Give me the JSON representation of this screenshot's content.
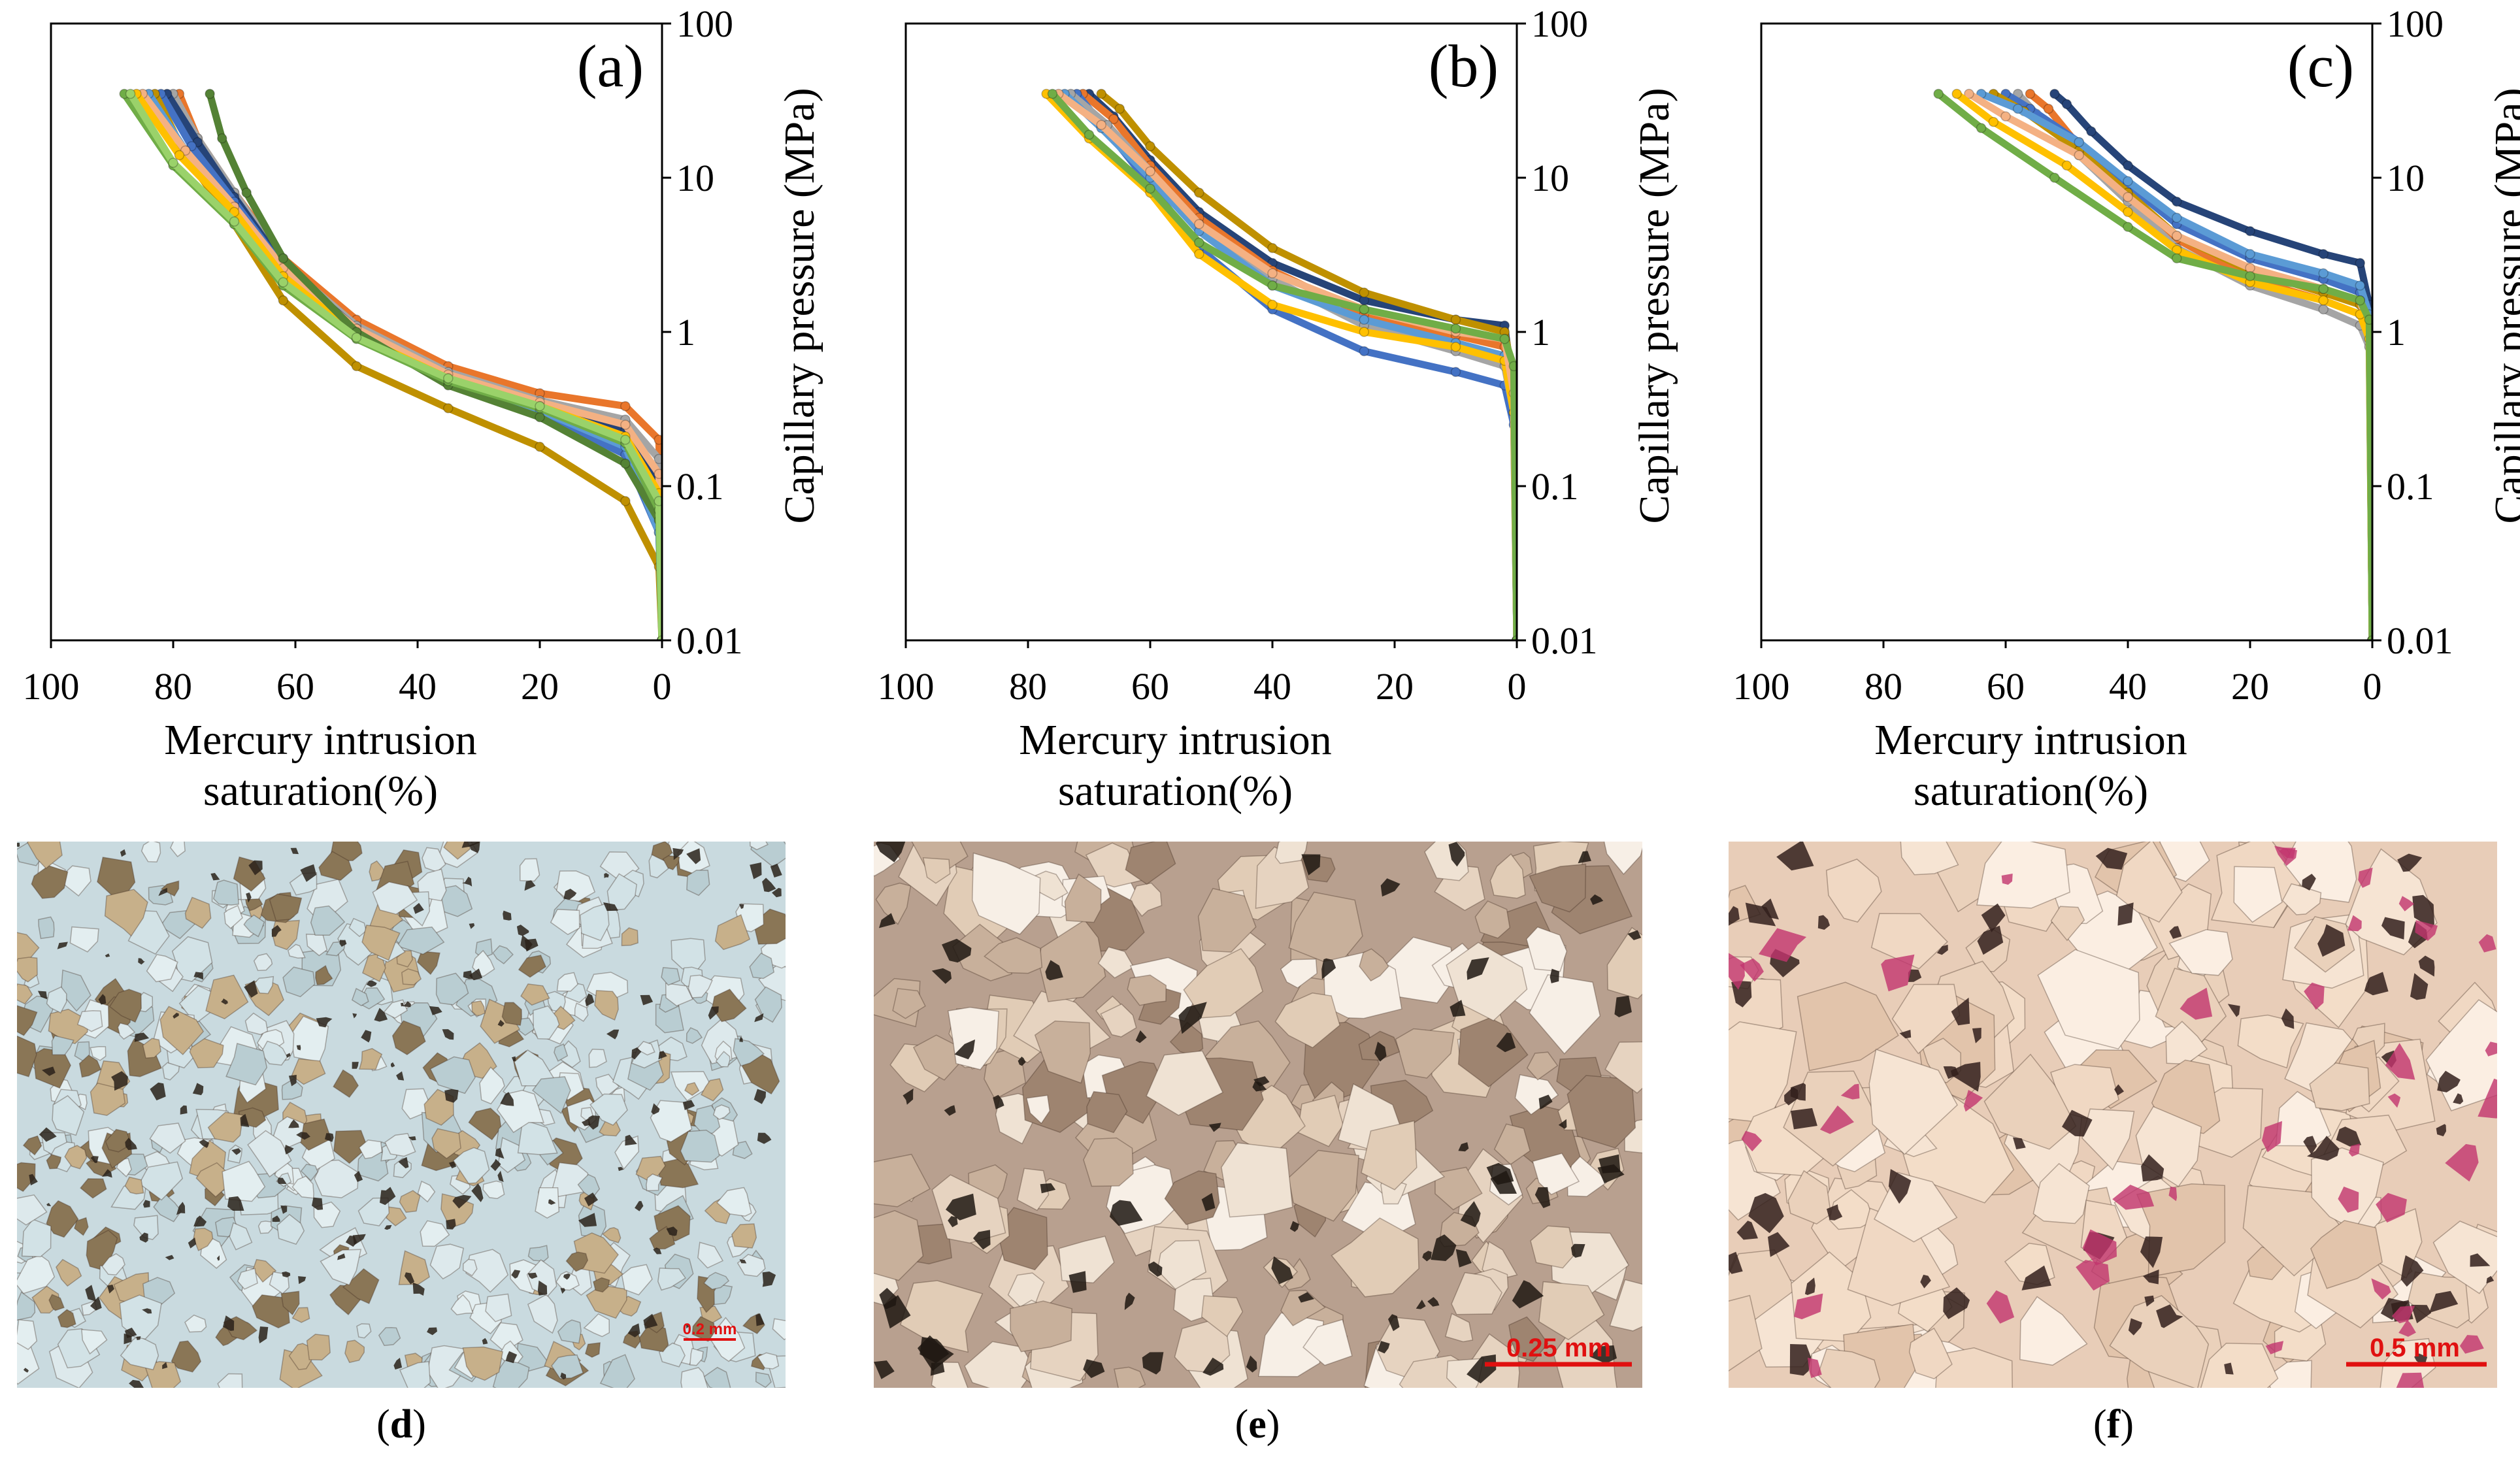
{
  "chart_data": [
    {
      "type": "line",
      "panel_label": "(a)",
      "xlabel_line1": "Mercury intrusion",
      "xlabel_line2": "saturation(%)",
      "ylabel": "Capillary pressure (MPa)",
      "x_ticks": [
        "100",
        "80",
        "60",
        "40",
        "20",
        "0"
      ],
      "y_ticks": [
        "0.01",
        "0.1",
        "1",
        "10",
        "100"
      ],
      "xlim": [
        100,
        0
      ],
      "ylim": [
        0.01,
        100
      ],
      "y_scale": "log",
      "series": [
        {
          "color": "#e9762b",
          "x": [
            0,
            0.5,
            6,
            20,
            35,
            50,
            62,
            70,
            76,
            79
          ],
          "y": [
            0.01,
            0.2,
            0.33,
            0.4,
            0.6,
            1.2,
            3,
            8,
            18,
            35
          ]
        },
        {
          "color": "#a5a5a5",
          "x": [
            0,
            0.5,
            6,
            20,
            35,
            50,
            62,
            70,
            76,
            80
          ],
          "y": [
            0.01,
            0.15,
            0.27,
            0.36,
            0.55,
            1.1,
            2.8,
            8,
            18,
            35
          ]
        },
        {
          "color": "#264478",
          "x": [
            0,
            0.5,
            6,
            20,
            35,
            50,
            62,
            70,
            76,
            81
          ],
          "y": [
            0.01,
            0.1,
            0.23,
            0.34,
            0.52,
            1.05,
            2.7,
            7.5,
            17,
            35
          ]
        },
        {
          "color": "#4472c4",
          "x": [
            0,
            0.5,
            6,
            20,
            35,
            50,
            62,
            70,
            77,
            82
          ],
          "y": [
            0.01,
            0.05,
            0.16,
            0.3,
            0.48,
            1.0,
            2.6,
            7,
            16,
            35
          ]
        },
        {
          "color": "#bf9000",
          "x": [
            0,
            0.5,
            6,
            20,
            35,
            50,
            62,
            70,
            78,
            83
          ],
          "y": [
            0.01,
            0.03,
            0.08,
            0.18,
            0.32,
            0.6,
            1.6,
            5,
            14,
            35
          ]
        },
        {
          "color": "#5b9bd5",
          "x": [
            0,
            0.5,
            6,
            20,
            35,
            50,
            62,
            70,
            78,
            84
          ],
          "y": [
            0.01,
            0.05,
            0.18,
            0.31,
            0.5,
            1.0,
            2.5,
            6.5,
            15,
            35
          ]
        },
        {
          "color": "#f4b183",
          "x": [
            0,
            0.5,
            6,
            20,
            35,
            50,
            62,
            70,
            78,
            85
          ],
          "y": [
            0.01,
            0.12,
            0.25,
            0.35,
            0.53,
            1.05,
            2.6,
            6.5,
            15,
            35
          ]
        },
        {
          "color": "#ffc000",
          "x": [
            0,
            0.5,
            6,
            20,
            35,
            50,
            62,
            70,
            79,
            86
          ],
          "y": [
            0.01,
            0.09,
            0.21,
            0.33,
            0.5,
            0.95,
            2.3,
            6,
            14,
            35
          ]
        },
        {
          "color": "#548235",
          "x": [
            0,
            0.5,
            6,
            20,
            35,
            50,
            62,
            68,
            72,
            74
          ],
          "y": [
            0.01,
            0.06,
            0.14,
            0.28,
            0.45,
            1.0,
            3,
            8,
            18,
            35
          ]
        },
        {
          "color": "#70ad47",
          "x": [
            0,
            0.5,
            6,
            20,
            35,
            50,
            62,
            70,
            80,
            88
          ],
          "y": [
            0.01,
            0.07,
            0.19,
            0.32,
            0.48,
            0.9,
            2.0,
            5,
            12,
            35
          ]
        },
        {
          "color": "#9ad26a",
          "x": [
            0,
            0.5,
            6,
            20,
            35,
            50,
            62,
            70,
            80,
            87
          ],
          "y": [
            0.01,
            0.08,
            0.2,
            0.33,
            0.5,
            0.92,
            2.1,
            5.2,
            12.5,
            35
          ]
        }
      ]
    },
    {
      "type": "line",
      "panel_label": "(b)",
      "xlabel_line1": "Mercury intrusion",
      "xlabel_line2": "saturation(%)",
      "ylabel": "Capillary pressure (MPa)",
      "x_ticks": [
        "100",
        "80",
        "60",
        "40",
        "20",
        "0"
      ],
      "y_ticks": [
        "0.01",
        "0.1",
        "1",
        "10",
        "100"
      ],
      "xlim": [
        100,
        0
      ],
      "ylim": [
        0.01,
        100
      ],
      "y_scale": "log",
      "series": [
        {
          "color": "#264478",
          "x": [
            0,
            0.5,
            2,
            10,
            25,
            40,
            52,
            60,
            66,
            70
          ],
          "y": [
            0.01,
            0.4,
            1.1,
            1.2,
            1.6,
            2.8,
            6,
            13,
            25,
            35
          ]
        },
        {
          "color": "#e9762b",
          "x": [
            0,
            0.5,
            2,
            10,
            25,
            40,
            52,
            60,
            66,
            71
          ],
          "y": [
            0.01,
            0.35,
            0.8,
            0.95,
            1.3,
            2.5,
            5.5,
            12,
            24,
            35
          ]
        },
        {
          "color": "#4472c4",
          "x": [
            0,
            0.5,
            2,
            10,
            25,
            40,
            52,
            60,
            67,
            72
          ],
          "y": [
            0.01,
            0.25,
            0.45,
            0.55,
            0.75,
            1.4,
            3.5,
            9,
            20,
            35
          ]
        },
        {
          "color": "#bf9000",
          "x": [
            0,
            0.5,
            2,
            10,
            25,
            40,
            52,
            60,
            65,
            68
          ],
          "y": [
            0.01,
            0.5,
            1.0,
            1.2,
            1.8,
            3.5,
            8,
            16,
            28,
            35
          ]
        },
        {
          "color": "#a5a5a5",
          "x": [
            0,
            0.5,
            2,
            10,
            25,
            40,
            52,
            60,
            67,
            73
          ],
          "y": [
            0.01,
            0.3,
            0.6,
            0.75,
            1.1,
            2.2,
            5,
            11,
            22,
            35
          ]
        },
        {
          "color": "#5b9bd5",
          "x": [
            0,
            0.5,
            2,
            10,
            25,
            40,
            52,
            60,
            68,
            74
          ],
          "y": [
            0.01,
            0.35,
            0.7,
            0.85,
            1.2,
            2.0,
            4.5,
            10,
            21,
            35
          ]
        },
        {
          "color": "#ffc000",
          "x": [
            0,
            0.5,
            2,
            10,
            25,
            40,
            52,
            60,
            70,
            77
          ],
          "y": [
            0.01,
            0.3,
            0.65,
            0.8,
            1.0,
            1.5,
            3.2,
            8,
            18,
            35
          ]
        },
        {
          "color": "#f4b183",
          "x": [
            0,
            0.5,
            2,
            10,
            25,
            40,
            52,
            60,
            68,
            75
          ],
          "y": [
            0.01,
            0.4,
            0.9,
            1.0,
            1.4,
            2.4,
            5,
            11,
            22,
            35
          ]
        },
        {
          "color": "#70ad47",
          "x": [
            0,
            0.5,
            2,
            10,
            25,
            40,
            52,
            60,
            70,
            76
          ],
          "y": [
            0.01,
            0.6,
            0.9,
            1.05,
            1.4,
            2.0,
            3.8,
            8.5,
            19,
            35
          ]
        }
      ]
    },
    {
      "type": "line",
      "panel_label": "(c)",
      "xlabel_line1": "Mercury intrusion",
      "xlabel_line2": "saturation(%)",
      "ylabel": "Capillary pressure (MPa)",
      "x_ticks": [
        "100",
        "80",
        "60",
        "40",
        "20",
        "0"
      ],
      "y_ticks": [
        "0.01",
        "0.1",
        "1",
        "10",
        "100"
      ],
      "xlim": [
        100,
        0
      ],
      "ylim": [
        0.01,
        100
      ],
      "y_scale": "log",
      "series": [
        {
          "color": "#264478",
          "x": [
            0,
            0.5,
            2,
            8,
            20,
            32,
            40,
            46,
            50,
            52
          ],
          "y": [
            0.01,
            1.5,
            2.8,
            3.2,
            4.5,
            7,
            12,
            20,
            30,
            35
          ]
        },
        {
          "color": "#e9762b",
          "x": [
            0,
            0.5,
            2,
            8,
            20,
            32,
            40,
            48,
            53,
            56
          ],
          "y": [
            0.01,
            1.0,
            1.3,
            1.6,
            2.2,
            4,
            8,
            16,
            28,
            35
          ]
        },
        {
          "color": "#a5a5a5",
          "x": [
            0,
            0.5,
            2,
            8,
            20,
            32,
            40,
            48,
            55,
            58
          ],
          "y": [
            0.01,
            0.8,
            1.1,
            1.4,
            2.0,
            3.5,
            7,
            14,
            26,
            35
          ]
        },
        {
          "color": "#4472c4",
          "x": [
            0,
            0.5,
            2,
            8,
            20,
            32,
            40,
            48,
            56,
            60
          ],
          "y": [
            0.01,
            1.2,
            1.8,
            2.2,
            3.0,
            5,
            9,
            17,
            28,
            35
          ]
        },
        {
          "color": "#bf9000",
          "x": [
            0,
            0.5,
            2,
            8,
            20,
            32,
            40,
            48,
            57,
            62
          ],
          "y": [
            0.01,
            1.1,
            1.5,
            1.8,
            2.5,
            4.2,
            8,
            15,
            27,
            35
          ]
        },
        {
          "color": "#5b9bd5",
          "x": [
            0,
            0.5,
            2,
            8,
            20,
            32,
            40,
            48,
            58,
            64
          ],
          "y": [
            0.01,
            1.3,
            2.0,
            2.4,
            3.2,
            5.5,
            9.5,
            17,
            28,
            35
          ]
        },
        {
          "color": "#f4b183",
          "x": [
            0,
            0.5,
            2,
            8,
            20,
            32,
            40,
            48,
            60,
            66
          ],
          "y": [
            0.01,
            1.0,
            1.6,
            1.9,
            2.6,
            4.2,
            7.5,
            14,
            25,
            35
          ]
        },
        {
          "color": "#ffc000",
          "x": [
            0,
            0.5,
            2,
            8,
            20,
            32,
            40,
            50,
            62,
            68
          ],
          "y": [
            0.01,
            0.9,
            1.3,
            1.6,
            2.1,
            3.4,
            6,
            12,
            23,
            35
          ]
        },
        {
          "color": "#70ad47",
          "x": [
            0,
            0.5,
            2,
            8,
            20,
            32,
            40,
            52,
            64,
            71
          ],
          "y": [
            0.01,
            1.2,
            1.6,
            1.9,
            2.3,
            3.0,
            4.8,
            10,
            21,
            35
          ]
        }
      ]
    }
  ],
  "images": [
    {
      "scale_label": "0.2 mm",
      "caption": "d"
    },
    {
      "scale_label": "0.25 mm",
      "caption": "e"
    },
    {
      "scale_label": "0.5 mm",
      "caption": "f"
    }
  ],
  "captions": {
    "open": "(",
    "close": ")"
  }
}
